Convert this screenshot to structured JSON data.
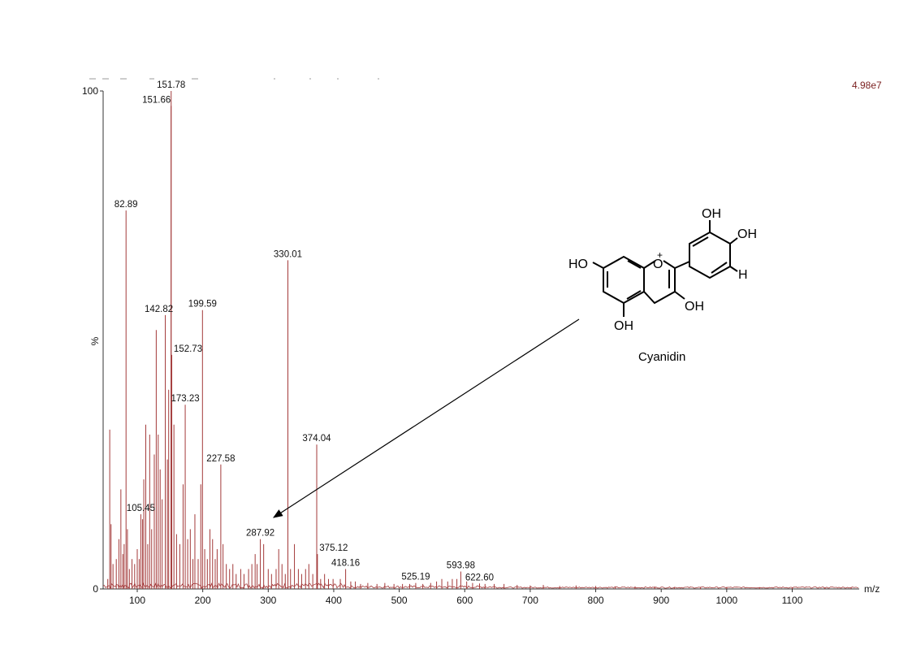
{
  "chart_data": {
    "type": "line",
    "title": "",
    "xlabel": "m/z",
    "ylabel": "%",
    "intensity_scale": "4.98e7",
    "xlim": [
      50,
      1200
    ],
    "ylim": [
      0,
      100
    ],
    "x_ticks": [
      100,
      200,
      300,
      400,
      500,
      600,
      700,
      800,
      900,
      1000,
      1100
    ],
    "y_ticks": [
      0,
      100
    ],
    "grid": false,
    "line_color": "#a33a3a",
    "labeled_peaks": [
      {
        "mz": "151.78",
        "x": 151.78,
        "y": 100
      },
      {
        "mz": "151.66",
        "x": 151.66,
        "y": 97
      },
      {
        "mz": "82.89",
        "x": 82.89,
        "y": 76
      },
      {
        "mz": "330.01",
        "x": 330.01,
        "y": 66
      },
      {
        "mz": "142.82",
        "x": 142.82,
        "y": 55
      },
      {
        "mz": "199.59",
        "x": 199.59,
        "y": 56
      },
      {
        "mz": "152.73",
        "x": 152.73,
        "y": 47
      },
      {
        "mz": "173.23",
        "x": 173.23,
        "y": 37
      },
      {
        "mz": "374.04",
        "x": 374.04,
        "y": 29
      },
      {
        "mz": "227.58",
        "x": 227.58,
        "y": 25
      },
      {
        "mz": "105.45",
        "x": 105.45,
        "y": 15
      },
      {
        "mz": "287.92",
        "x": 287.92,
        "y": 10
      },
      {
        "mz": "375.12",
        "x": 375.12,
        "y": 7
      },
      {
        "mz": "418.16",
        "x": 418.16,
        "y": 4
      },
      {
        "mz": "593.98",
        "x": 593.98,
        "y": 3.5
      },
      {
        "mz": "525.19",
        "x": 525.19,
        "y": 1.2
      },
      {
        "mz": "622.60",
        "x": 622.6,
        "y": 1.1
      }
    ],
    "other_peaks": [
      [
        55,
        2
      ],
      [
        58,
        32
      ],
      [
        60,
        13
      ],
      [
        63,
        5
      ],
      [
        68,
        6
      ],
      [
        72,
        10
      ],
      [
        75,
        20
      ],
      [
        78,
        7
      ],
      [
        80,
        9
      ],
      [
        85,
        12
      ],
      [
        88,
        4
      ],
      [
        92,
        6
      ],
      [
        96,
        5
      ],
      [
        100,
        8
      ],
      [
        103,
        6
      ],
      [
        108,
        14
      ],
      [
        110,
        22
      ],
      [
        113,
        33
      ],
      [
        116,
        9
      ],
      [
        119,
        31
      ],
      [
        122,
        12
      ],
      [
        126,
        27
      ],
      [
        129,
        52
      ],
      [
        132,
        31
      ],
      [
        135,
        24
      ],
      [
        138,
        18
      ],
      [
        146,
        26
      ],
      [
        148,
        40
      ],
      [
        156,
        33
      ],
      [
        160,
        11
      ],
      [
        165,
        9
      ],
      [
        170,
        21
      ],
      [
        177,
        10
      ],
      [
        181,
        12
      ],
      [
        185,
        6
      ],
      [
        188,
        15
      ],
      [
        193,
        6
      ],
      [
        197,
        21
      ],
      [
        203,
        8
      ],
      [
        207,
        6
      ],
      [
        211,
        12
      ],
      [
        215,
        10
      ],
      [
        219,
        6
      ],
      [
        222,
        8
      ],
      [
        231,
        9
      ],
      [
        236,
        5
      ],
      [
        241,
        4
      ],
      [
        246,
        5
      ],
      [
        251,
        3
      ],
      [
        258,
        4
      ],
      [
        263,
        3
      ],
      [
        270,
        4
      ],
      [
        275,
        5
      ],
      [
        280,
        7
      ],
      [
        283,
        5
      ],
      [
        293,
        9
      ],
      [
        300,
        4
      ],
      [
        305,
        3
      ],
      [
        312,
        4
      ],
      [
        316,
        8
      ],
      [
        321,
        5
      ],
      [
        326,
        3
      ],
      [
        334,
        4
      ],
      [
        340,
        9
      ],
      [
        346,
        4
      ],
      [
        351,
        3
      ],
      [
        357,
        4
      ],
      [
        362,
        5
      ],
      [
        368,
        3
      ],
      [
        380,
        2
      ],
      [
        386,
        3
      ],
      [
        392,
        2
      ],
      [
        399,
        2
      ],
      [
        410,
        2
      ],
      [
        426,
        1.5
      ],
      [
        433,
        1.5
      ],
      [
        441,
        1
      ],
      [
        452,
        1.2
      ],
      [
        466,
        1
      ],
      [
        478,
        1.2
      ],
      [
        492,
        1
      ],
      [
        505,
        1
      ],
      [
        516,
        1
      ],
      [
        536,
        1
      ],
      [
        548,
        1.2
      ],
      [
        557,
        1.5
      ],
      [
        565,
        2
      ],
      [
        574,
        1.5
      ],
      [
        581,
        2
      ],
      [
        588,
        2
      ],
      [
        603,
        1.5
      ],
      [
        612,
        1.2
      ],
      [
        631,
        1
      ],
      [
        645,
        1
      ],
      [
        660,
        1
      ],
      [
        680,
        0.8
      ],
      [
        700,
        0.7
      ],
      [
        720,
        0.8
      ],
      [
        745,
        0.6
      ],
      [
        770,
        0.7
      ],
      [
        800,
        0.6
      ],
      [
        830,
        0.5
      ],
      [
        860,
        0.5
      ],
      [
        890,
        0.5
      ],
      [
        920,
        0.4
      ],
      [
        960,
        0.4
      ],
      [
        1000,
        0.4
      ],
      [
        1050,
        0.3
      ],
      [
        1100,
        0.3
      ],
      [
        1150,
        0.3
      ],
      [
        1190,
        0.3
      ]
    ],
    "annotation": {
      "compound": "Cyanidin",
      "arrow_target_mz": 287.92
    }
  },
  "structure": {
    "name": "Cyanidin",
    "groups": {
      "ho_left": "HO",
      "oh_bottom": "OH",
      "oh_ring_c": "OH",
      "oh_top": "OH",
      "oh_right": "OH",
      "h": "H",
      "o_plus": "O",
      "plus": "+"
    }
  }
}
